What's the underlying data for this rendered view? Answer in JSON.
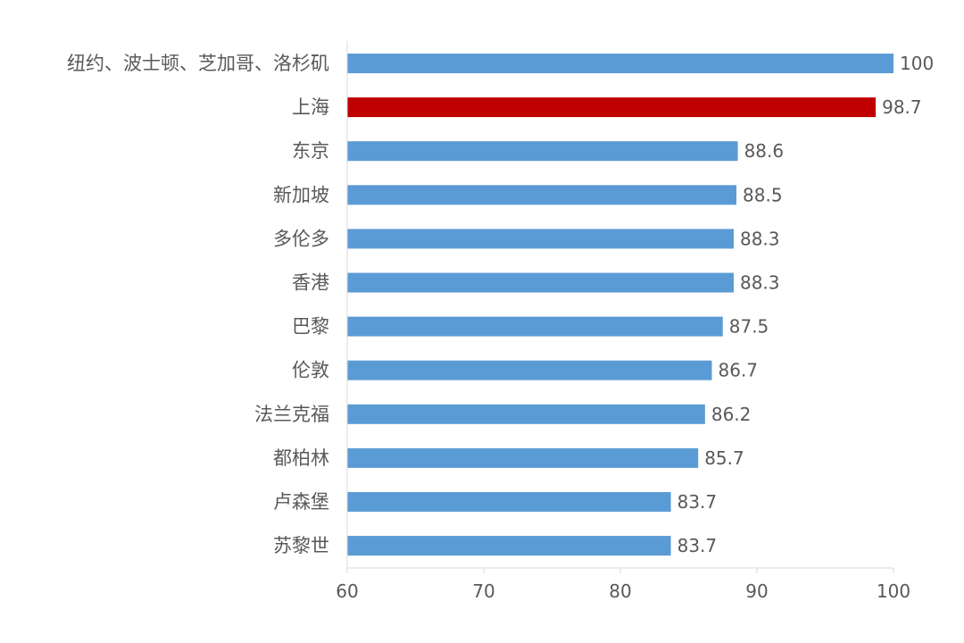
{
  "chart_data": {
    "type": "bar",
    "orientation": "horizontal",
    "categories": [
      "纽约、波士顿、芝加哥、洛杉矶",
      "上海",
      "东京",
      "新加坡",
      "多伦多",
      "香港",
      "巴黎",
      "伦敦",
      "法兰克福",
      "都柏林",
      "卢森堡",
      "苏黎世"
    ],
    "values": [
      100,
      98.7,
      88.6,
      88.5,
      88.3,
      88.3,
      87.5,
      86.7,
      86.2,
      85.7,
      83.7,
      83.7
    ],
    "value_labels": [
      "100",
      "98.7",
      "88.6",
      "88.5",
      "88.3",
      "88.3",
      "87.5",
      "86.7",
      "86.2",
      "85.7",
      "83.7",
      "83.7"
    ],
    "xlim": [
      60,
      100
    ],
    "xticks": [
      60,
      70,
      80,
      90,
      100
    ],
    "xtick_labels": [
      "60",
      "70",
      "80",
      "90",
      "100"
    ],
    "title": "",
    "xlabel": "",
    "ylabel": "",
    "grid": false,
    "legend": "none",
    "colors": {
      "default_bar": "#5b9bd5",
      "highlight_bar": "#c00000",
      "text": "#595959",
      "axis": "#d9d9d9"
    },
    "highlight_category": "上海"
  }
}
